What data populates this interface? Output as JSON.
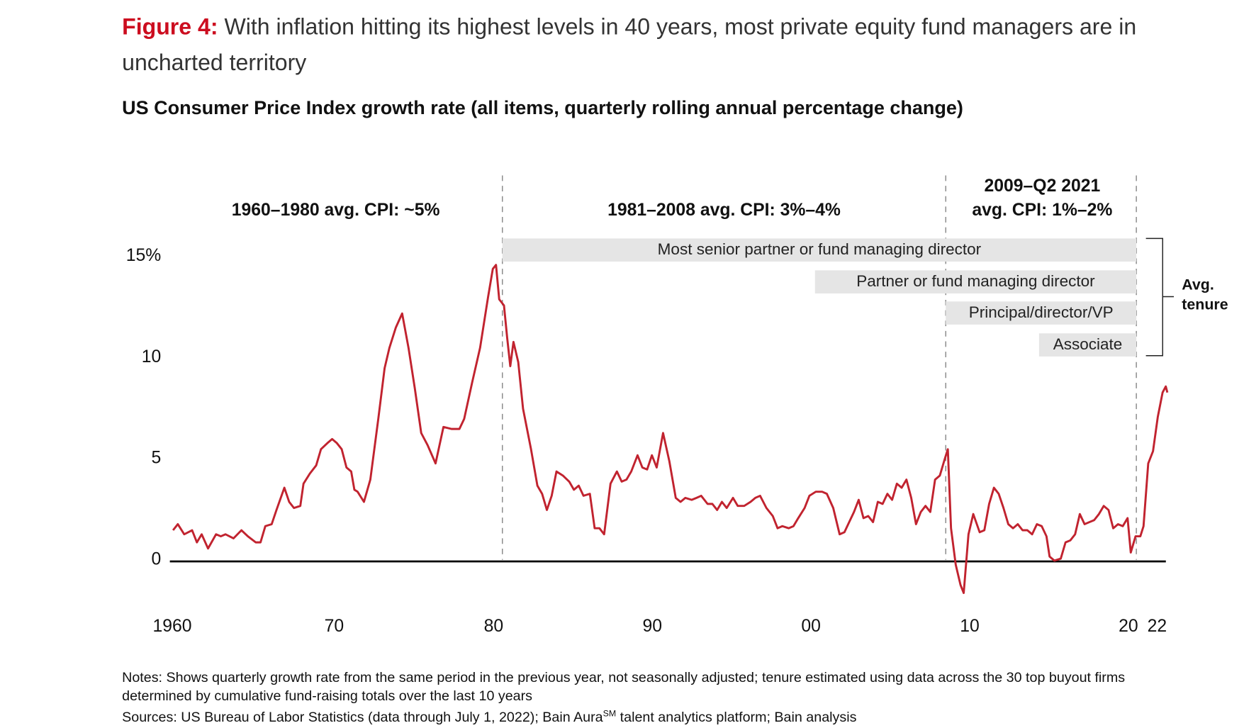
{
  "header": {
    "figure_label": "Figure 4:",
    "title": "With inflation hitting its highest levels in 40 years, most private equity fund managers are in uncharted territory"
  },
  "chart_data": {
    "type": "line",
    "title": "US Consumer Price Index growth rate (all items, quarterly rolling annual percentage change)",
    "xlabel": "",
    "ylabel": "",
    "xlim": [
      1960,
      2022.5
    ],
    "ylim": [
      -2,
      15
    ],
    "grid": false,
    "y_ticks": [
      "15%",
      "10",
      "5",
      "0"
    ],
    "y_tick_values": [
      15,
      10,
      5,
      0
    ],
    "x_ticks": [
      "1960",
      "70",
      "80",
      "90",
      "00",
      "10",
      "20",
      "22"
    ],
    "x_tick_values": [
      1960,
      1970,
      1980,
      1990,
      2000,
      2010,
      2020,
      2022
    ],
    "line_color": "#c1232f",
    "series": [
      {
        "x": [
          1960.0,
          1960.3,
          1960.7,
          1961.2,
          1961.5,
          1961.8,
          1962.2,
          1962.7,
          1963.0,
          1963.3,
          1963.8,
          1964.3,
          1964.7,
          1965.2,
          1965.5,
          1965.8,
          1966.2,
          1966.5,
          1967.0,
          1967.3,
          1967.6,
          1968.0,
          1968.2,
          1968.6,
          1969.0,
          1969.3,
          1969.7,
          1970.0,
          1970.3,
          1970.6,
          1970.9,
          1971.2,
          1971.4,
          1971.6,
          1972.0,
          1972.4,
          1972.9,
          1973.3,
          1973.6,
          1974.0,
          1974.4,
          1974.8,
          1975.2,
          1975.6,
          1976.0,
          1976.5,
          1977.0,
          1977.5,
          1978.0,
          1978.3,
          1978.8,
          1979.3,
          1979.8,
          1980.1,
          1980.3,
          1980.5,
          1980.8,
          1981.0,
          1981.2,
          1981.4,
          1981.7,
          1982.0,
          1982.5,
          1982.9,
          1983.2,
          1983.5,
          1983.8,
          1984.1,
          1984.5,
          1984.9,
          1985.2,
          1985.5,
          1985.8,
          1986.2,
          1986.5,
          1986.8,
          1987.1,
          1987.5,
          1987.9,
          1988.2,
          1988.5,
          1988.8,
          1989.2,
          1989.5,
          1989.8,
          1990.1,
          1990.4,
          1990.8,
          1991.2,
          1991.6,
          1991.9,
          1992.2,
          1992.6,
          1992.9,
          1993.2,
          1993.6,
          1993.9,
          1994.2,
          1994.5,
          1994.8,
          1995.2,
          1995.5,
          1995.9,
          1996.3,
          1996.6,
          1996.9,
          1997.3,
          1997.7,
          1998.0,
          1998.3,
          1998.7,
          1999.0,
          1999.3,
          1999.7,
          2000.0,
          2000.4,
          2000.8,
          2001.1,
          2001.5,
          2001.9,
          2002.2,
          2002.5,
          2002.8,
          2003.1,
          2003.4,
          2003.7,
          2004.0,
          2004.3,
          2004.6,
          2004.9,
          2005.2,
          2005.5,
          2005.8,
          2006.1,
          2006.4,
          2006.7,
          2007.0,
          2007.3,
          2007.6,
          2007.9,
          2008.2,
          2008.5,
          2008.7,
          2008.9,
          2009.2,
          2009.5,
          2009.7,
          2010.0,
          2010.3,
          2010.7,
          2011.0,
          2011.3,
          2011.6,
          2011.9,
          2012.2,
          2012.5,
          2012.8,
          2013.1,
          2013.4,
          2013.7,
          2014.0,
          2014.3,
          2014.6,
          2014.9,
          2015.1,
          2015.4,
          2015.8,
          2016.1,
          2016.4,
          2016.7,
          2017.0,
          2017.3,
          2017.6,
          2017.9,
          2018.2,
          2018.5,
          2018.8,
          2019.1,
          2019.4,
          2019.7,
          2020.0,
          2020.2,
          2020.5,
          2020.8,
          2021.0,
          2021.3,
          2021.6,
          2021.9,
          2022.2,
          2022.4,
          2022.5
        ],
        "y": [
          1.5,
          1.8,
          1.3,
          1.5,
          0.9,
          1.3,
          0.6,
          1.3,
          1.2,
          1.3,
          1.1,
          1.5,
          1.2,
          0.9,
          0.9,
          1.7,
          1.8,
          2.5,
          3.6,
          2.9,
          2.6,
          2.7,
          3.8,
          4.3,
          4.7,
          5.5,
          5.8,
          6.0,
          5.8,
          5.5,
          4.6,
          4.4,
          3.5,
          3.4,
          2.9,
          4.0,
          7.0,
          9.5,
          10.5,
          11.5,
          12.2,
          10.5,
          8.5,
          6.3,
          5.7,
          4.8,
          6.6,
          6.5,
          6.5,
          7.0,
          8.8,
          10.5,
          13.0,
          14.4,
          14.6,
          12.9,
          12.6,
          11.0,
          9.6,
          10.8,
          9.8,
          7.5,
          5.5,
          3.7,
          3.3,
          2.5,
          3.2,
          4.4,
          4.2,
          3.9,
          3.5,
          3.7,
          3.2,
          3.3,
          1.6,
          1.6,
          1.3,
          3.8,
          4.4,
          3.9,
          4.0,
          4.4,
          5.2,
          4.6,
          4.5,
          5.2,
          4.6,
          6.3,
          4.9,
          3.1,
          2.9,
          3.1,
          3.0,
          3.1,
          3.2,
          2.8,
          2.8,
          2.5,
          2.9,
          2.6,
          3.1,
          2.7,
          2.7,
          2.9,
          3.1,
          3.2,
          2.6,
          2.2,
          1.6,
          1.7,
          1.6,
          1.7,
          2.1,
          2.6,
          3.2,
          3.4,
          3.4,
          3.3,
          2.6,
          1.3,
          1.4,
          1.9,
          2.4,
          3.0,
          2.1,
          2.2,
          1.9,
          2.9,
          2.8,
          3.3,
          3.0,
          3.8,
          3.6,
          4.0,
          3.1,
          1.8,
          2.4,
          2.7,
          2.4,
          4.0,
          4.2,
          5.0,
          5.5,
          1.6,
          -0.2,
          -1.2,
          -1.6,
          1.3,
          2.3,
          1.4,
          1.5,
          2.8,
          3.6,
          3.3,
          2.6,
          1.8,
          1.6,
          1.8,
          1.5,
          1.5,
          1.3,
          1.8,
          1.7,
          1.2,
          0.2,
          0.0,
          0.1,
          0.9,
          1.0,
          1.3,
          2.3,
          1.8,
          1.9,
          2.0,
          2.3,
          2.7,
          2.5,
          1.6,
          1.8,
          1.7,
          2.1,
          0.4,
          1.2,
          1.2,
          1.7,
          4.8,
          5.4,
          7.1,
          8.3,
          8.6,
          8.3
        ]
      }
    ],
    "period_dividers": [
      1980.6,
      2008.5,
      2020.5
    ],
    "annotations": {
      "period_1": "1960–1980 avg. CPI: ~5%",
      "period_2": "1981–2008 avg. CPI: 3%–4%",
      "period_3_line1": "2009–Q2 2021",
      "period_3_line2": "avg. CPI: 1%–2%",
      "tenure_bars": [
        "Most senior partner or fund managing director",
        "Partner or fund managing director",
        "Principal/director/VP",
        "Associate"
      ],
      "tenure_label_line1": "Avg.",
      "tenure_label_line2": "tenure"
    }
  },
  "footer": {
    "notes_line1": "Notes: Shows quarterly growth rate from the same period in the previous year, not seasonally adjusted; tenure estimated using data across the 30 top buyout firms",
    "notes_line2": "determined by cumulative fund-raising totals over the last 10 years",
    "sources_pre": "Sources: US Bureau of Labor Statistics (data through July 1, 2022); Bain Aura",
    "sources_sup": "SM",
    "sources_post": " talent analytics platform; Bain analysis"
  }
}
